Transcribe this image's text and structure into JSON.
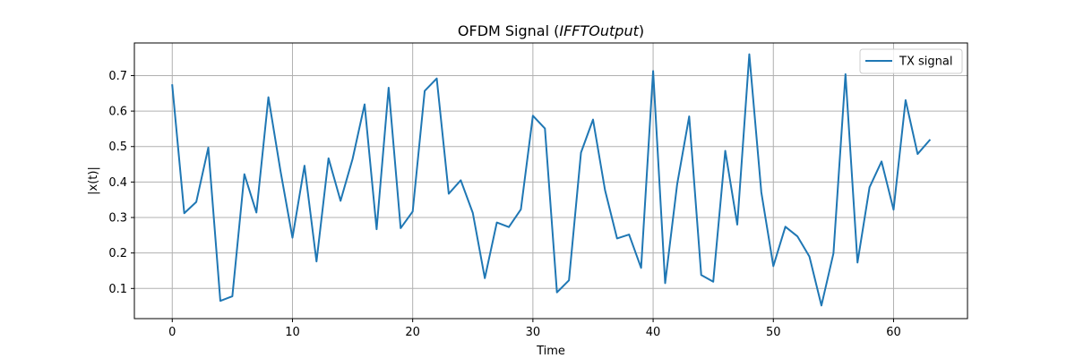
{
  "chart_data": {
    "type": "line",
    "title": {
      "prefix": "OFDM Signal (",
      "italic": "IFFTOutput",
      "suffix": ")"
    },
    "xlabel": "Time",
    "ylabel": "|x(t)|",
    "xlim": [
      -3.15,
      66.15
    ],
    "ylim": [
      0.015,
      0.792
    ],
    "xticks": [
      0,
      10,
      20,
      30,
      40,
      50,
      60
    ],
    "yticks": [
      0.1,
      0.2,
      0.3,
      0.4,
      0.5,
      0.6,
      0.7
    ],
    "grid": true,
    "legend_position": "top-right",
    "series": [
      {
        "name": "TX signal",
        "color": "#1f77b4",
        "x": [
          0,
          1,
          2,
          3,
          4,
          5,
          6,
          7,
          8,
          9,
          10,
          11,
          12,
          13,
          14,
          15,
          16,
          17,
          18,
          19,
          20,
          21,
          22,
          23,
          24,
          25,
          26,
          27,
          28,
          29,
          30,
          31,
          32,
          33,
          34,
          35,
          36,
          37,
          38,
          39,
          40,
          41,
          42,
          43,
          44,
          45,
          46,
          47,
          48,
          49,
          50,
          51,
          52,
          53,
          54,
          55,
          56,
          57,
          58,
          59,
          60,
          61,
          62,
          63
        ],
        "y": [
          0.673,
          0.312,
          0.344,
          0.497,
          0.065,
          0.078,
          0.422,
          0.314,
          0.639,
          0.432,
          0.243,
          0.446,
          0.176,
          0.467,
          0.347,
          0.465,
          0.619,
          0.267,
          0.666,
          0.27,
          0.317,
          0.657,
          0.692,
          0.367,
          0.405,
          0.313,
          0.129,
          0.286,
          0.273,
          0.323,
          0.587,
          0.551,
          0.089,
          0.123,
          0.483,
          0.576,
          0.377,
          0.241,
          0.252,
          0.158,
          0.713,
          0.115,
          0.394,
          0.585,
          0.138,
          0.119,
          0.488,
          0.28,
          0.76,
          0.371,
          0.163,
          0.274,
          0.247,
          0.19,
          0.052,
          0.199,
          0.704,
          0.173,
          0.385,
          0.458,
          0.322,
          0.631,
          0.479,
          0.518
        ]
      }
    ]
  }
}
